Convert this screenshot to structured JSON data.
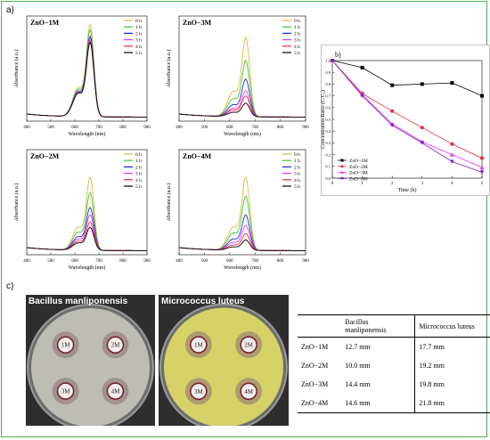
{
  "panel_labels": {
    "a": "a)",
    "b": "b)",
    "c": "c)"
  },
  "chart_data": [
    {
      "type": "line",
      "title": "ZnO−1M",
      "xlabel": "Wavelength (nm)",
      "ylabel": "Absorbance (a.u.)",
      "xlim": [
        400,
        900
      ],
      "xticks": [
        400,
        500,
        600,
        700,
        800,
        900
      ],
      "legend_position": "top-right",
      "peak_nm": 664,
      "shoulder_nm": 614,
      "series": [
        {
          "name": "0 h",
          "color": "#e8b53a",
          "peak": 0.88
        },
        {
          "name": "1 h",
          "color": "#33cc33",
          "peak": 0.83
        },
        {
          "name": "2 h",
          "color": "#2222dd",
          "peak": 0.77
        },
        {
          "name": "3 h",
          "color": "#ee33ee",
          "peak": 0.74
        },
        {
          "name": "4 h",
          "color": "#e8293a",
          "peak": 0.72
        },
        {
          "name": "5 h",
          "color": "#000000",
          "peak": 0.71
        }
      ]
    },
    {
      "type": "line",
      "title": "ZnO−3M",
      "xlabel": "Wavelength (nm)",
      "ylabel": "Absorbance (a.u.)",
      "xlim": [
        400,
        900
      ],
      "xticks": [
        400,
        500,
        600,
        700,
        800,
        900
      ],
      "legend_position": "top-right",
      "peak_nm": 664,
      "shoulder_nm": 614,
      "series": [
        {
          "name": "0 h",
          "color": "#e8b53a",
          "peak": 0.76
        },
        {
          "name": "1 h",
          "color": "#33cc33",
          "peak": 0.54
        },
        {
          "name": "2 h",
          "color": "#2222dd",
          "peak": 0.36
        },
        {
          "name": "3 h",
          "color": "#ee33ee",
          "peak": 0.25
        },
        {
          "name": "4 h",
          "color": "#e8293a",
          "peak": 0.2
        },
        {
          "name": "5 h",
          "color": "#000000",
          "peak": 0.13
        }
      ]
    },
    {
      "type": "line",
      "title": "ZnO−2M",
      "xlabel": "Wavelength (nm)",
      "ylabel": "Absorbance (a.u.)",
      "xlim": [
        400,
        900
      ],
      "xticks": [
        400,
        500,
        600,
        700,
        800,
        900
      ],
      "legend_position": "top-right",
      "peak_nm": 664,
      "shoulder_nm": 614,
      "series": [
        {
          "name": "0 h",
          "color": "#e8b53a",
          "peak": 0.7
        },
        {
          "name": "1 h",
          "color": "#33cc33",
          "peak": 0.55
        },
        {
          "name": "2 h",
          "color": "#2222dd",
          "peak": 0.41
        },
        {
          "name": "3 h",
          "color": "#ee33ee",
          "peak": 0.34
        },
        {
          "name": "4 h",
          "color": "#e8293a",
          "peak": 0.27
        },
        {
          "name": "5 h",
          "color": "#000000",
          "peak": 0.22
        }
      ]
    },
    {
      "type": "line",
      "title": "ZnO−4M",
      "xlabel": "Wavelength (nm)",
      "ylabel": "Absorbance (a.u.)",
      "xlim": [
        400,
        900
      ],
      "xticks": [
        400,
        500,
        600,
        700,
        800,
        900
      ],
      "legend_position": "top-right",
      "peak_nm": 664,
      "shoulder_nm": 614,
      "series": [
        {
          "name": "0 h",
          "color": "#e8b53a",
          "peak": 0.7
        },
        {
          "name": "1 h",
          "color": "#33cc33",
          "peak": 0.52
        },
        {
          "name": "2 h",
          "color": "#2222dd",
          "peak": 0.34
        },
        {
          "name": "3 h",
          "color": "#ee33ee",
          "peak": 0.24
        },
        {
          "name": "4 h",
          "color": "#e8293a",
          "peak": 0.16
        },
        {
          "name": "5 h",
          "color": "#000000",
          "peak": 0.1
        }
      ]
    },
    {
      "type": "line",
      "xlabel": "Time (h)",
      "ylabel": "Concentration Ratio (C/C₀)",
      "xlim": [
        0,
        5
      ],
      "ylim": [
        0,
        1.0
      ],
      "xticks": [
        0,
        1,
        2,
        3,
        4,
        5
      ],
      "yticks": [
        0,
        0.1,
        0.2,
        0.3,
        0.4,
        0.5,
        0.6,
        0.7,
        0.8,
        0.9,
        1.0
      ],
      "legend_position": "bottom-left",
      "x": [
        0,
        1,
        2,
        3,
        4,
        5
      ],
      "series": [
        {
          "name": "ZnO−1M",
          "color": "#000000",
          "marker": "square",
          "values": [
            1.0,
            0.94,
            0.79,
            0.8,
            0.81,
            0.7
          ]
        },
        {
          "name": "ZnO−2M",
          "color": "#e8293a",
          "marker": "circle",
          "values": [
            1.0,
            0.72,
            0.57,
            0.43,
            0.29,
            0.17
          ]
        },
        {
          "name": "ZnO−3M",
          "color": "#ee33ee",
          "marker": "triangle",
          "values": [
            1.0,
            0.71,
            0.46,
            0.31,
            0.2,
            0.09
          ]
        },
        {
          "name": "ZnO−4M",
          "color": "#7a22cc",
          "marker": "triangle-down",
          "values": [
            1.0,
            0.7,
            0.45,
            0.3,
            0.14,
            0.05
          ]
        }
      ]
    }
  ],
  "photos": [
    {
      "label": "Bacillus manliponensis",
      "agar_color": "#bdbdb5",
      "wells": [
        "1M",
        "2M",
        "3M",
        "4M"
      ]
    },
    {
      "label": "Micrococcus luteus",
      "agar_color": "#d6d268",
      "wells": [
        "1M",
        "2M",
        "3M",
        "4M"
      ]
    }
  ],
  "table": {
    "headers": [
      "",
      "Bacillus manliponensis",
      "Micrococcus luteus"
    ],
    "rows": [
      [
        "ZnO−1M",
        "12.7 mm",
        "17.7 mm"
      ],
      [
        "ZnO−2M",
        "10.0 mm",
        "19.2 mm"
      ],
      [
        "ZnO−3M",
        "14.4 mm",
        "19.8 mm"
      ],
      [
        "ZnO−4M",
        "14.6 mm",
        "21.8 mm"
      ]
    ]
  }
}
